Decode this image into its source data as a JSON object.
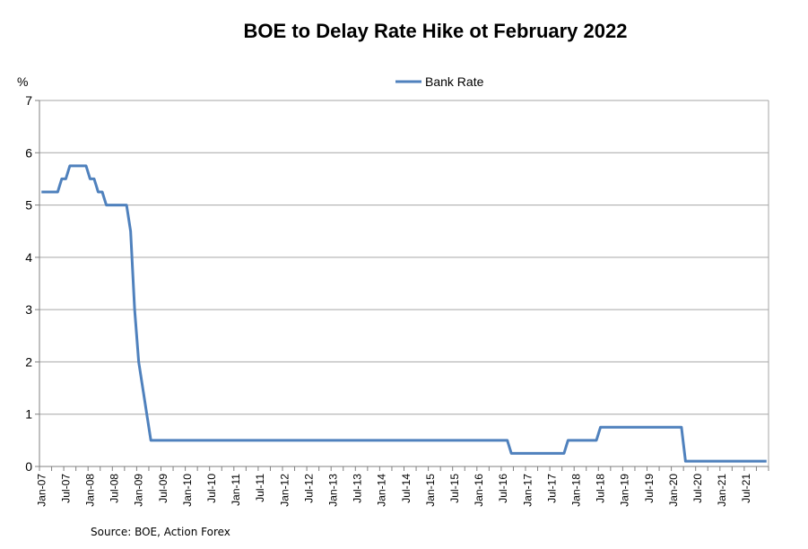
{
  "chart_data": {
    "type": "line",
    "title": "BOE to Delay Rate Hike ot February 2022",
    "ylabel": "%",
    "xlabel": "",
    "ylim": [
      0,
      7
    ],
    "yticks": [
      "0",
      "1",
      "2",
      "3",
      "4",
      "5",
      "6",
      "7"
    ],
    "source": "Source: BOE, Action Forex",
    "legend": {
      "position": "top-center",
      "entries": [
        "Bank Rate"
      ]
    },
    "series_color": "#4f81bd",
    "grid_color": "#a6a6a6",
    "x_tick_labels": [
      "Jan-07",
      "Jul-07",
      "Jan-08",
      "Jul-08",
      "Jan-09",
      "Jul-09",
      "Jan-10",
      "Jul-10",
      "Jan-11",
      "Jul-11",
      "Jan-12",
      "Jul-12",
      "Jan-13",
      "Jul-13",
      "Jan-14",
      "Jul-14",
      "Jan-15",
      "Jul-15",
      "Jan-16",
      "Jul-16",
      "Jan-17",
      "Jul-17",
      "Jan-18",
      "Jul-18",
      "Jan-19",
      "Jul-19",
      "Jan-20",
      "Jul-20",
      "Jan-21",
      "Jul-21"
    ],
    "x_start": "Jan-07",
    "months_count": 180,
    "series": [
      {
        "name": "Bank Rate",
        "points": [
          {
            "m": 0,
            "v": 5.25
          },
          {
            "m": 4,
            "v": 5.25
          },
          {
            "m": 5,
            "v": 5.5
          },
          {
            "m": 6,
            "v": 5.5
          },
          {
            "m": 7,
            "v": 5.75
          },
          {
            "m": 11,
            "v": 5.75
          },
          {
            "m": 12,
            "v": 5.5
          },
          {
            "m": 13,
            "v": 5.5
          },
          {
            "m": 14,
            "v": 5.25
          },
          {
            "m": 15,
            "v": 5.25
          },
          {
            "m": 16,
            "v": 5.0
          },
          {
            "m": 21,
            "v": 5.0
          },
          {
            "m": 22,
            "v": 4.5
          },
          {
            "m": 23,
            "v": 3.0
          },
          {
            "m": 24,
            "v": 2.0
          },
          {
            "m": 25,
            "v": 1.5
          },
          {
            "m": 26,
            "v": 1.0
          },
          {
            "m": 27,
            "v": 0.5
          },
          {
            "m": 115,
            "v": 0.5
          },
          {
            "m": 116,
            "v": 0.25
          },
          {
            "m": 129,
            "v": 0.25
          },
          {
            "m": 130,
            "v": 0.5
          },
          {
            "m": 137,
            "v": 0.5
          },
          {
            "m": 138,
            "v": 0.75
          },
          {
            "m": 158,
            "v": 0.75
          },
          {
            "m": 159,
            "v": 0.1
          },
          {
            "m": 179,
            "v": 0.1
          }
        ]
      }
    ]
  }
}
